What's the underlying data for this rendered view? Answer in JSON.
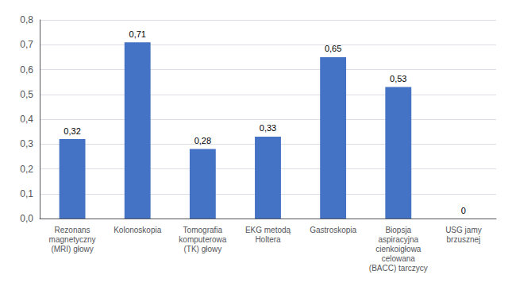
{
  "chart_data": {
    "type": "bar",
    "categories": [
      "Rezonans\nmagnetyczny\n(MRI) głowy",
      "Kolonoskopia",
      "Tomografia\nkomputerowa\n(TK) głowy",
      "EKG metodą\nHoltera",
      "Gastroskopia",
      "Biopsja\naspiracyjna\ncienkoigłowa\ncelowana\n(BACC) tarczycy",
      "USG jamy\nbrzusznej"
    ],
    "values": [
      0.32,
      0.71,
      0.28,
      0.33,
      0.65,
      0.53,
      0.0
    ],
    "value_labels": [
      "0,32",
      "0,71",
      "0,28",
      "0,33",
      "0,65",
      "0,53",
      "0"
    ],
    "data_labels": true,
    "color": "#4472C4",
    "ylim": [
      0.0,
      0.8
    ],
    "yticks": [
      {
        "value": 0.0,
        "label": "0,0"
      },
      {
        "value": 0.1,
        "label": "0,1"
      },
      {
        "value": 0.2,
        "label": "0,2"
      },
      {
        "value": 0.3,
        "label": "0,3"
      },
      {
        "value": 0.4,
        "label": "0,4"
      },
      {
        "value": 0.5,
        "label": "0,5"
      },
      {
        "value": 0.6,
        "label": "0,6"
      },
      {
        "value": 0.7,
        "label": "0,7"
      },
      {
        "value": 0.8,
        "label": "0,8"
      }
    ],
    "grid": true
  }
}
